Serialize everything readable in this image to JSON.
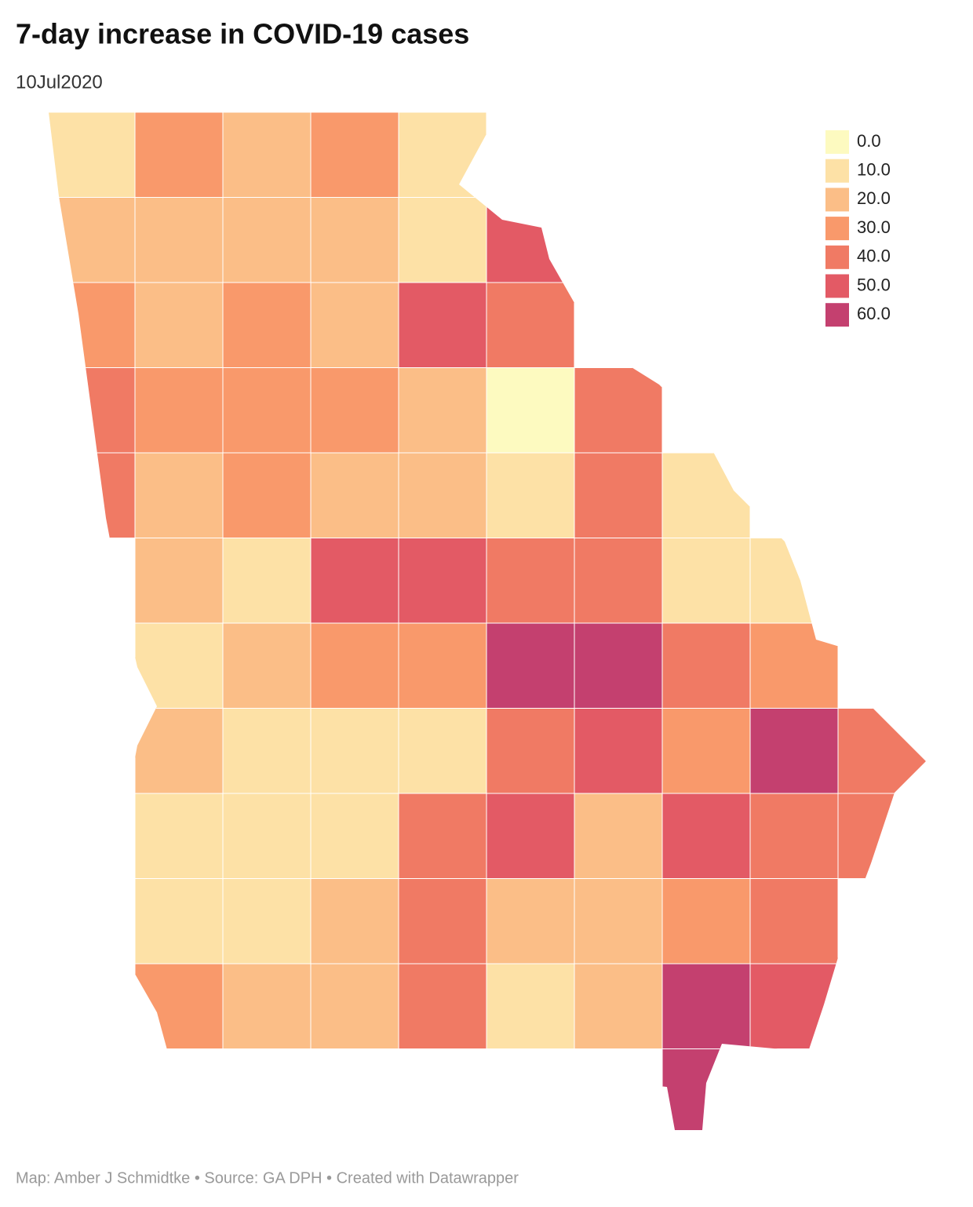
{
  "title": "7-day increase in COVID-19 cases",
  "subtitle": "10Jul2020",
  "legend": {
    "stops": [
      {
        "value": 0,
        "label": "0.0",
        "color": "#fdfac0"
      },
      {
        "value": 10,
        "label": "10.0",
        "color": "#fde1a6"
      },
      {
        "value": 20,
        "label": "20.0",
        "color": "#fbbe87"
      },
      {
        "value": 30,
        "label": "30.0",
        "color": "#f9996b"
      },
      {
        "value": 40,
        "label": "40.0",
        "color": "#f07a64"
      },
      {
        "value": 50,
        "label": "50.0",
        "color": "#e35a65"
      },
      {
        "value": 60,
        "label": "60.0",
        "color": "#c4406f"
      }
    ]
  },
  "map": {
    "cells": [
      [
        10,
        30,
        20,
        30,
        10,
        null,
        null,
        null,
        null,
        null
      ],
      [
        20,
        20,
        20,
        20,
        10,
        50,
        null,
        null,
        null,
        null
      ],
      [
        30,
        20,
        30,
        20,
        50,
        40,
        null,
        null,
        null,
        null
      ],
      [
        40,
        30,
        30,
        30,
        20,
        0,
        40,
        null,
        null,
        null
      ],
      [
        40,
        20,
        30,
        20,
        20,
        10,
        40,
        10,
        null,
        null
      ],
      [
        null,
        20,
        10,
        50,
        50,
        40,
        40,
        10,
        10,
        null
      ],
      [
        null,
        10,
        20,
        30,
        30,
        60,
        60,
        40,
        30,
        null
      ],
      [
        null,
        20,
        10,
        10,
        10,
        40,
        50,
        30,
        60,
        40
      ],
      [
        null,
        10,
        10,
        10,
        40,
        50,
        20,
        50,
        40,
        40
      ],
      [
        null,
        10,
        10,
        20,
        40,
        20,
        20,
        30,
        40,
        null
      ],
      [
        null,
        30,
        20,
        20,
        40,
        10,
        20,
        60,
        50,
        null
      ],
      [
        null,
        null,
        null,
        null,
        null,
        null,
        null,
        60,
        null,
        null
      ]
    ]
  },
  "footer": "Map: Amber J Schmidtke • Source: GA DPH • Created with Datawrapper"
}
